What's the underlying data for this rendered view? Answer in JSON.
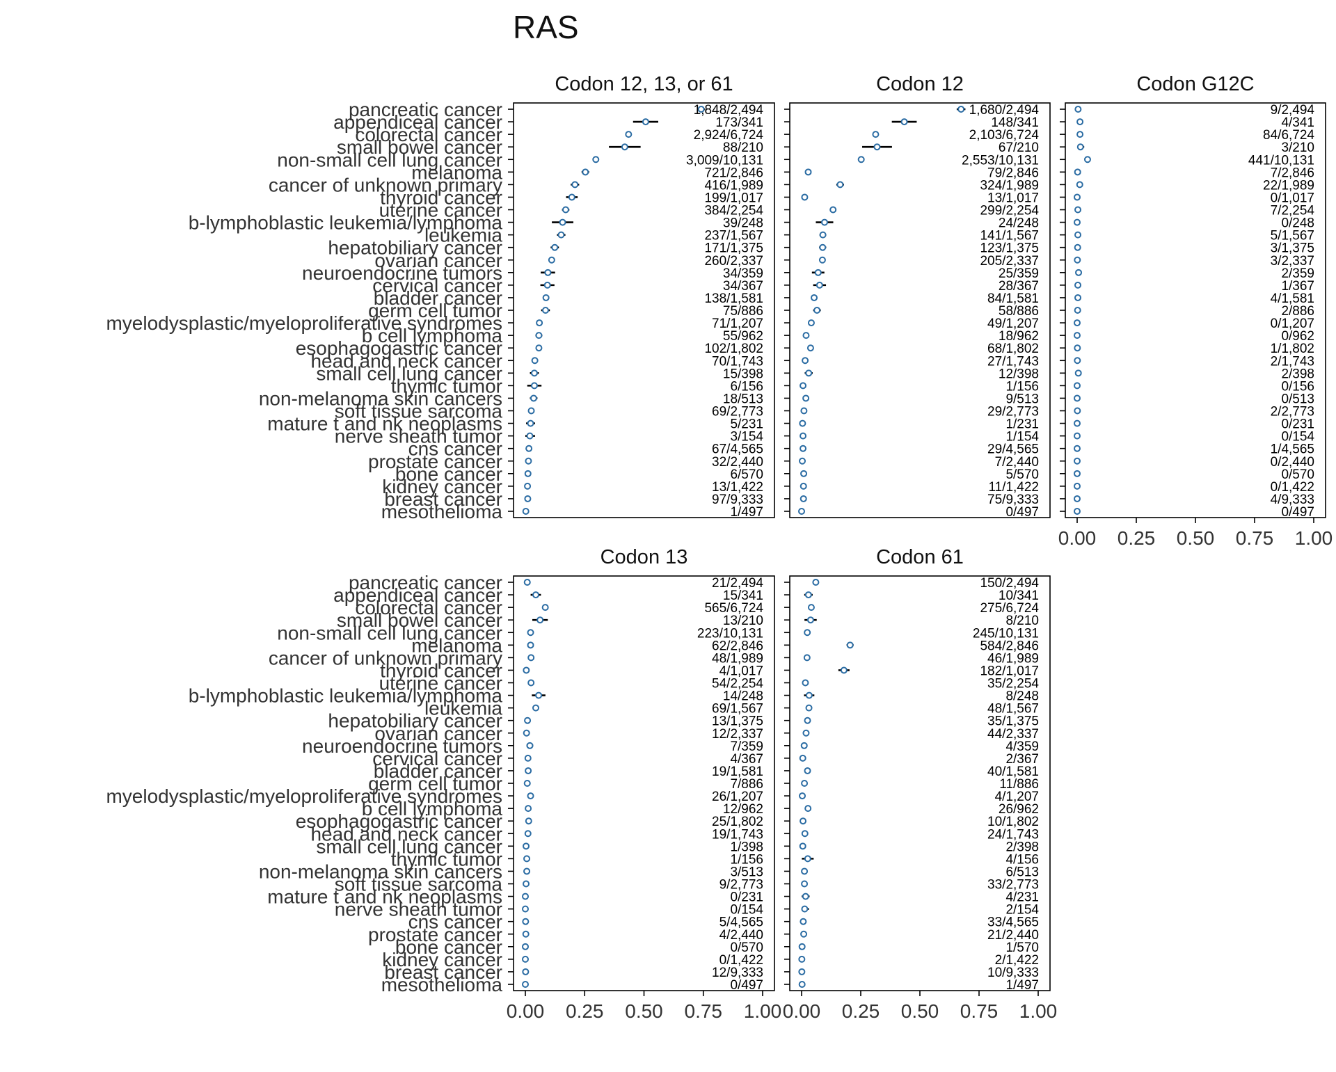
{
  "title": "RAS",
  "x_ticks": [
    "0.00",
    "0.25",
    "0.50",
    "0.75",
    "1.00"
  ],
  "colors": {
    "point": "#2b6ca3",
    "ci": "#000000",
    "axis": "#000000"
  },
  "chart_data": {
    "type": "scatter",
    "subtype": "forest-plot",
    "x_range": [
      0,
      1
    ],
    "categories": [
      "pancreatic cancer",
      "appendiceal cancer",
      "colorectal cancer",
      "small bowel cancer",
      "non-small cell lung cancer",
      "melanoma",
      "cancer of unknown primary",
      "thyroid cancer",
      "uterine cancer",
      "b-lymphoblastic leukemia/lymphoma",
      "leukemia",
      "hepatobiliary cancer",
      "ovarian cancer",
      "neuroendocrine tumors",
      "cervical cancer",
      "bladder cancer",
      "germ cell tumor",
      "myelodysplastic/myeloproliferative syndromes",
      "b cell lymphoma",
      "esophagogastric cancer",
      "head and neck cancer",
      "small cell lung cancer",
      "thymic tumor",
      "non-melanoma skin cancers",
      "soft tissue sarcoma",
      "mature t and nk neoplasms",
      "nerve sheath tumor",
      "cns cancer",
      "prostate cancer",
      "bone cancer",
      "kidney cancer",
      "breast cancer",
      "mesothelioma"
    ],
    "panels": [
      {
        "name": "Codon 12, 13, or 61",
        "counts": [
          "1,848/2,494",
          "173/341",
          "2,924/6,724",
          "88/210",
          "3,009/10,131",
          "721/2,846",
          "416/1,989",
          "199/1,017",
          "384/2,254",
          "39/248",
          "237/1,567",
          "171/1,375",
          "260/2,337",
          "34/359",
          "34/367",
          "138/1,581",
          "75/886",
          "71/1,207",
          "55/962",
          "102/1,802",
          "70/1,743",
          "15/398",
          "6/156",
          "18/513",
          "69/2,773",
          "5/231",
          "3/154",
          "67/4,565",
          "32/2,440",
          "6/570",
          "13/1,422",
          "97/9,333",
          "1/497"
        ],
        "values": [
          0.741,
          0.507,
          0.435,
          0.419,
          0.297,
          0.253,
          0.209,
          0.196,
          0.17,
          0.157,
          0.151,
          0.124,
          0.111,
          0.095,
          0.093,
          0.087,
          0.085,
          0.059,
          0.057,
          0.057,
          0.04,
          0.038,
          0.038,
          0.035,
          0.025,
          0.022,
          0.019,
          0.015,
          0.013,
          0.011,
          0.009,
          0.01,
          0.002
        ]
      },
      {
        "name": "Codon 12",
        "counts": [
          "1,680/2,494",
          "148/341",
          "2,103/6,724",
          "67/210",
          "2,553/10,131",
          "79/2,846",
          "324/1,989",
          "13/1,017",
          "299/2,254",
          "24/248",
          "141/1,567",
          "123/1,375",
          "205/2,337",
          "25/359",
          "28/367",
          "84/1,581",
          "58/886",
          "49/1,207",
          "18/962",
          "68/1,802",
          "27/1,743",
          "12/398",
          "1/156",
          "9/513",
          "29/2,773",
          "1/231",
          "1/154",
          "29/4,565",
          "7/2,440",
          "5/570",
          "11/1,422",
          "75/9,333",
          "0/497"
        ],
        "values": [
          0.674,
          0.434,
          0.313,
          0.319,
          0.252,
          0.028,
          0.163,
          0.013,
          0.133,
          0.097,
          0.09,
          0.089,
          0.088,
          0.07,
          0.076,
          0.053,
          0.065,
          0.041,
          0.019,
          0.038,
          0.015,
          0.03,
          0.006,
          0.018,
          0.01,
          0.004,
          0.006,
          0.006,
          0.003,
          0.009,
          0.008,
          0.008,
          0.0
        ]
      },
      {
        "name": "Codon G12C",
        "counts": [
          "9/2,494",
          "4/341",
          "84/6,724",
          "3/210",
          "441/10,131",
          "7/2,846",
          "22/1,989",
          "0/1,017",
          "7/2,254",
          "0/248",
          "5/1,567",
          "3/1,375",
          "3/2,337",
          "2/359",
          "1/367",
          "4/1,581",
          "2/886",
          "0/1,207",
          "0/962",
          "1/1,802",
          "2/1,743",
          "2/398",
          "0/156",
          "0/513",
          "2/2,773",
          "0/231",
          "0/154",
          "1/4,565",
          "0/2,440",
          "0/570",
          "0/1,422",
          "4/9,333",
          "0/497"
        ],
        "values": [
          0.004,
          0.012,
          0.012,
          0.014,
          0.044,
          0.002,
          0.011,
          0.0,
          0.003,
          0.0,
          0.003,
          0.002,
          0.001,
          0.006,
          0.003,
          0.003,
          0.002,
          0.0,
          0.0,
          0.001,
          0.001,
          0.005,
          0.0,
          0.0,
          0.001,
          0.0,
          0.0,
          0.0,
          0.0,
          0.0,
          0.0,
          0.0,
          0.0
        ]
      },
      {
        "name": "Codon 13",
        "counts": [
          "21/2,494",
          "15/341",
          "565/6,724",
          "13/210",
          "223/10,131",
          "62/2,846",
          "48/1,989",
          "4/1,017",
          "54/2,254",
          "14/248",
          "69/1,567",
          "13/1,375",
          "12/2,337",
          "7/359",
          "4/367",
          "19/1,581",
          "7/886",
          "26/1,207",
          "12/962",
          "25/1,802",
          "19/1,743",
          "1/398",
          "1/156",
          "3/513",
          "9/2,773",
          "0/231",
          "0/154",
          "5/4,565",
          "4/2,440",
          "0/570",
          "0/1,422",
          "12/9,333",
          "0/497"
        ],
        "values": [
          0.008,
          0.044,
          0.084,
          0.062,
          0.022,
          0.022,
          0.024,
          0.004,
          0.024,
          0.056,
          0.044,
          0.009,
          0.005,
          0.019,
          0.011,
          0.012,
          0.008,
          0.022,
          0.012,
          0.014,
          0.011,
          0.003,
          0.006,
          0.006,
          0.003,
          0.0,
          0.0,
          0.001,
          0.002,
          0.0,
          0.0,
          0.001,
          0.0
        ]
      },
      {
        "name": "Codon 61",
        "counts": [
          "150/2,494",
          "10/341",
          "275/6,724",
          "8/210",
          "245/10,131",
          "584/2,846",
          "46/1,989",
          "182/1,017",
          "35/2,254",
          "8/248",
          "48/1,567",
          "35/1,375",
          "44/2,337",
          "4/359",
          "2/367",
          "40/1,581",
          "11/886",
          "4/1,207",
          "26/962",
          "10/1,802",
          "24/1,743",
          "2/398",
          "4/156",
          "6/513",
          "33/2,773",
          "4/231",
          "2/154",
          "33/4,565",
          "21/2,440",
          "1/570",
          "2/1,422",
          "10/9,333",
          "1/497"
        ],
        "values": [
          0.06,
          0.029,
          0.041,
          0.038,
          0.024,
          0.205,
          0.023,
          0.179,
          0.016,
          0.032,
          0.031,
          0.025,
          0.019,
          0.011,
          0.005,
          0.025,
          0.012,
          0.003,
          0.027,
          0.006,
          0.014,
          0.005,
          0.026,
          0.012,
          0.012,
          0.017,
          0.013,
          0.007,
          0.009,
          0.002,
          0.001,
          0.001,
          0.002
        ]
      }
    ]
  }
}
